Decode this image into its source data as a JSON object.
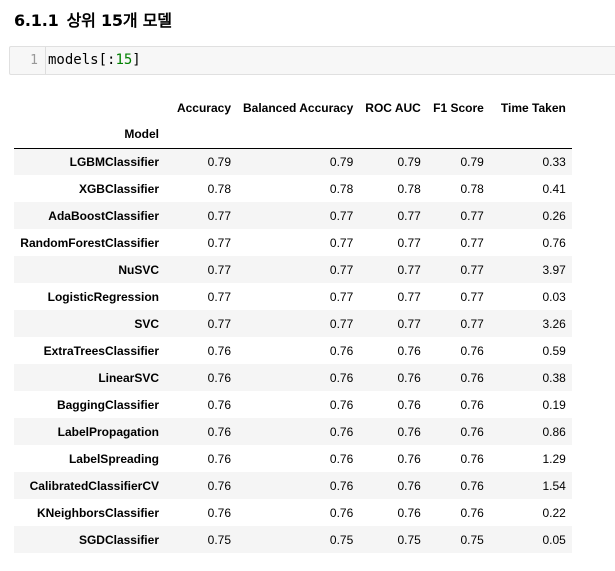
{
  "heading": {
    "number": "6.1.1",
    "title": "상위 15개 모델"
  },
  "code_cell": {
    "line_number": "1",
    "code_prefix": "models[:",
    "code_number": "15",
    "code_suffix": "]"
  },
  "table": {
    "columns": [
      "Accuracy",
      "Balanced Accuracy",
      "ROC AUC",
      "F1 Score",
      "Time Taken"
    ],
    "index_name": "Model",
    "rows": [
      {
        "model": "LGBMClassifier",
        "values": [
          "0.79",
          "0.79",
          "0.79",
          "0.79",
          "0.33"
        ]
      },
      {
        "model": "XGBClassifier",
        "values": [
          "0.78",
          "0.78",
          "0.78",
          "0.78",
          "0.41"
        ]
      },
      {
        "model": "AdaBoostClassifier",
        "values": [
          "0.77",
          "0.77",
          "0.77",
          "0.77",
          "0.26"
        ]
      },
      {
        "model": "RandomForestClassifier",
        "values": [
          "0.77",
          "0.77",
          "0.77",
          "0.77",
          "0.76"
        ]
      },
      {
        "model": "NuSVC",
        "values": [
          "0.77",
          "0.77",
          "0.77",
          "0.77",
          "3.97"
        ]
      },
      {
        "model": "LogisticRegression",
        "values": [
          "0.77",
          "0.77",
          "0.77",
          "0.77",
          "0.03"
        ]
      },
      {
        "model": "SVC",
        "values": [
          "0.77",
          "0.77",
          "0.77",
          "0.77",
          "3.26"
        ]
      },
      {
        "model": "ExtraTreesClassifier",
        "values": [
          "0.76",
          "0.76",
          "0.76",
          "0.76",
          "0.59"
        ]
      },
      {
        "model": "LinearSVC",
        "values": [
          "0.76",
          "0.76",
          "0.76",
          "0.76",
          "0.38"
        ]
      },
      {
        "model": "BaggingClassifier",
        "values": [
          "0.76",
          "0.76",
          "0.76",
          "0.76",
          "0.19"
        ]
      },
      {
        "model": "LabelPropagation",
        "values": [
          "0.76",
          "0.76",
          "0.76",
          "0.76",
          "0.86"
        ]
      },
      {
        "model": "LabelSpreading",
        "values": [
          "0.76",
          "0.76",
          "0.76",
          "0.76",
          "1.29"
        ]
      },
      {
        "model": "CalibratedClassifierCV",
        "values": [
          "0.76",
          "0.76",
          "0.76",
          "0.76",
          "1.54"
        ]
      },
      {
        "model": "KNeighborsClassifier",
        "values": [
          "0.76",
          "0.76",
          "0.76",
          "0.76",
          "0.22"
        ]
      },
      {
        "model": "SGDClassifier",
        "values": [
          "0.75",
          "0.75",
          "0.75",
          "0.75",
          "0.05"
        ]
      }
    ]
  }
}
